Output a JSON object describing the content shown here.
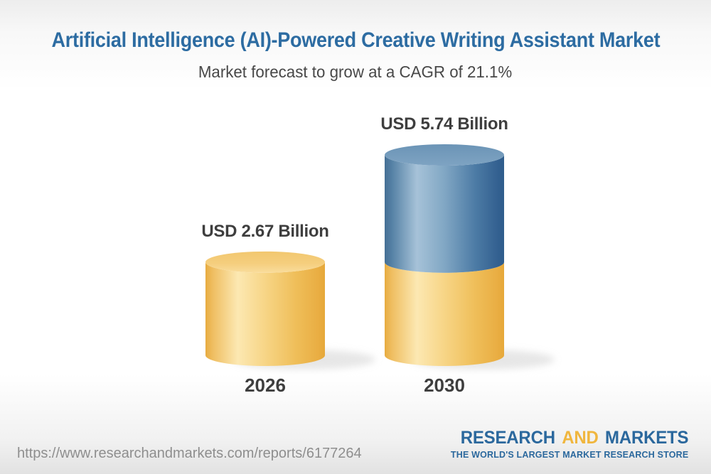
{
  "header": {
    "title": "Artificial Intelligence (AI)-Powered Creative Writing Assistant Market",
    "subtitle": "Market forecast to grow at a CAGR of 21.1%",
    "cagr": "21.1%"
  },
  "chart_data": {
    "type": "bar",
    "variant": "3d-cylinder",
    "unit": "USD Billion",
    "categories": [
      "2026",
      "2030"
    ],
    "values": [
      2.67,
      5.74
    ],
    "value_labels": [
      "USD 2.67 Billion",
      "USD 5.74 Billion"
    ],
    "bars": [
      {
        "category": "2026",
        "label": "USD 2.67 Billion",
        "total": 2.67,
        "segments": [
          {
            "value": 2.67,
            "color_key": "gold"
          }
        ]
      },
      {
        "category": "2030",
        "label": "USD 5.74 Billion",
        "total": 5.74,
        "segments": [
          {
            "value": 2.67,
            "color_key": "gold"
          },
          {
            "value": 3.07,
            "color_key": "blue"
          }
        ]
      }
    ],
    "colors": {
      "gold": "#F0BE5C",
      "blue": "#4A789E"
    },
    "ylim": [
      0,
      5.74
    ],
    "grid": false,
    "legend": null
  },
  "footer": {
    "url": "https://www.researchandmarkets.com/reports/6177264",
    "logo": {
      "part1": "RESEARCH",
      "part2": "AND",
      "part3": "MARKETS",
      "tagline": "THE WORLD'S LARGEST MARKET RESEARCH STORE"
    }
  },
  "colors": {
    "title_blue": "#2D6CA2",
    "text_dark": "#3E3E3E",
    "url_gray": "#8E8E8E",
    "logo_blue": "#2B689D",
    "logo_gold": "#F0B63E"
  }
}
